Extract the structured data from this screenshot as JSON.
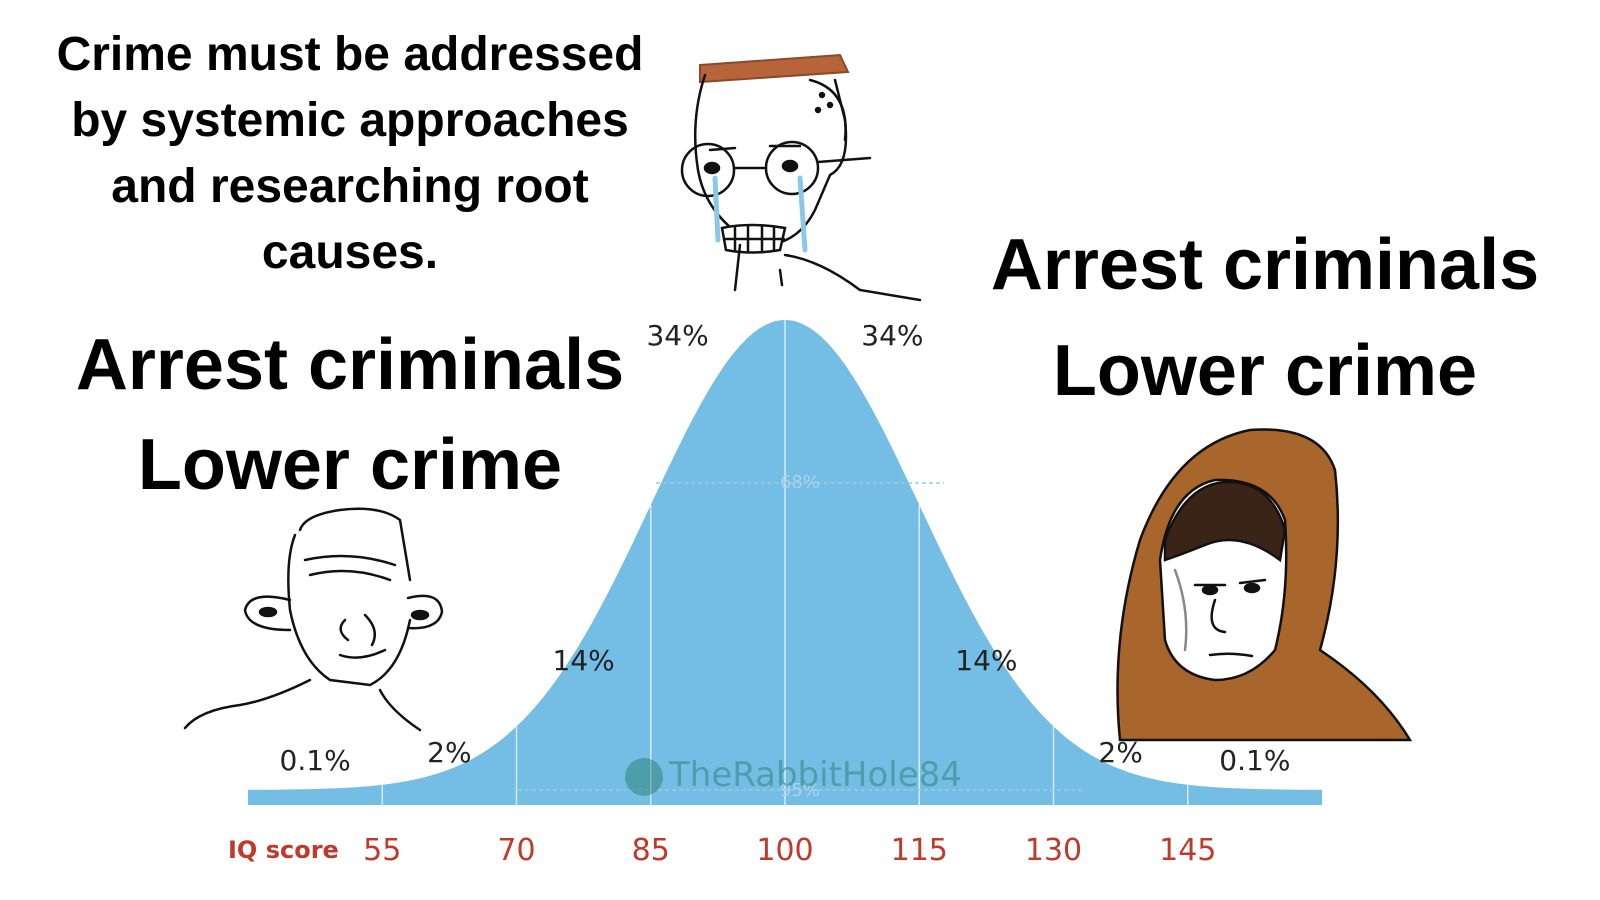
{
  "captions": {
    "middle": "Crime must be addressed\nby systemic approaches\nand researching root\ncauses.",
    "left": "Arrest criminals\nLower crime",
    "right": "Arrest criminals\nLower crime"
  },
  "watermark": "TheRabbitHole84",
  "colors": {
    "curve_fill": "#74bde5",
    "axis_label": "#c0392b",
    "text": "#000000"
  },
  "chart_data": {
    "type": "area",
    "xlabel": "IQ score",
    "x_ticks": [
      55,
      70,
      85,
      100,
      115,
      130,
      145
    ],
    "mean": 100,
    "sd": 15,
    "band_labels": [
      {
        "label": "0.1%",
        "from": 40,
        "to": 55
      },
      {
        "label": "2%",
        "from": 55,
        "to": 70
      },
      {
        "label": "14%",
        "from": 70,
        "to": 85
      },
      {
        "label": "34%",
        "from": 85,
        "to": 100
      },
      {
        "label": "34%",
        "from": 100,
        "to": 115
      },
      {
        "label": "14%",
        "from": 115,
        "to": 130
      },
      {
        "label": "2%",
        "from": 130,
        "to": 145
      },
      {
        "label": "0.1%",
        "from": 145,
        "to": 160
      }
    ],
    "annotations": [
      "68%",
      "95%"
    ],
    "xlim": [
      40,
      160
    ]
  },
  "characters": [
    {
      "name": "smug-wojak",
      "position": "left"
    },
    {
      "name": "crying-glasses-wojak",
      "position": "top-center"
    },
    {
      "name": "hooded-monk-wojak",
      "position": "right"
    }
  ]
}
